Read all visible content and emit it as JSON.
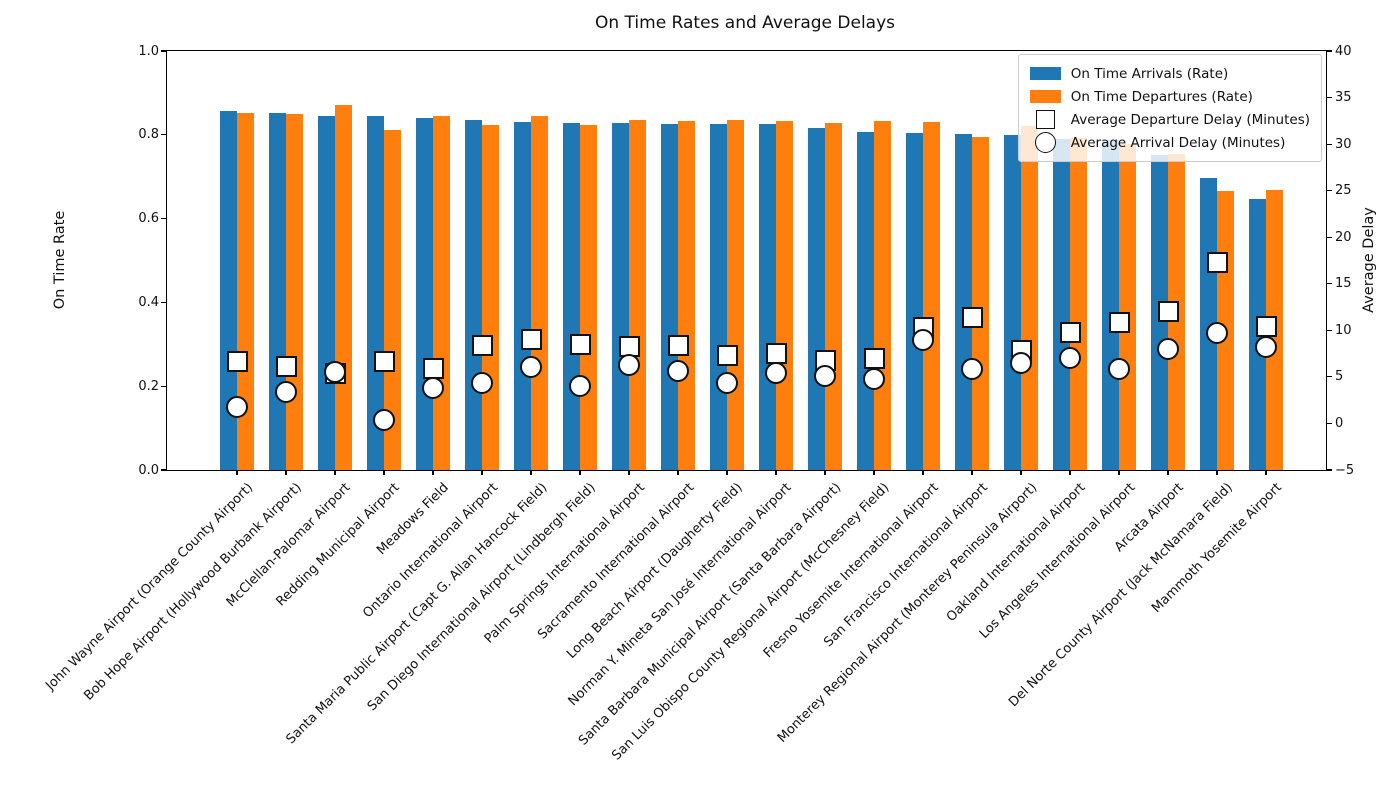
{
  "chart_data": {
    "type": "bar",
    "title": "On Time Rates and Average Delays",
    "ylabel_left": "On Time Rate",
    "ylabel_right": "Average Delay",
    "left_ylim": [
      0,
      1
    ],
    "right_ylim": [
      -5,
      40
    ],
    "grid": false,
    "legend_position": "upper right",
    "left_tick_labels": [
      "0.0",
      "0.2",
      "0.4",
      "0.6",
      "0.8",
      "1.0"
    ],
    "right_tick_labels": [
      "−5",
      "0",
      "5",
      "10",
      "15",
      "20",
      "25",
      "30",
      "35",
      "40"
    ],
    "categories": [
      "John Wayne Airport (Orange County Airport)",
      "Bob Hope Airport (Hollywood Burbank Airport)",
      "McClellan-Palomar Airport",
      "Redding Municipal Airport",
      "Meadows Field",
      "Ontario International Airport",
      "Santa Maria Public Airport (Capt G. Allan Hancock Field)",
      "San Diego International Airport (Lindbergh Field)",
      "Palm Springs International Airport",
      "Sacramento International Airport",
      "Long Beach Airport (Daugherty Field)",
      "Norman Y. Mineta San José International Airport",
      "Santa Barbara Municipal Airport (Santa Barbara Airport)",
      "San Luis Obispo County Regional Airport (McChesney Field)",
      "Fresno Yosemite International Airport",
      "San Francisco International Airport",
      "Monterey Regional Airport (Monterey Peninsula Airport)",
      "Oakland International Airport",
      "Los Angeles International Airport",
      "Arcata Airport",
      "Del Norte County Airport (Jack McNamara Field)",
      "Mammoth Yosemite Airport"
    ],
    "series": [
      {
        "name": "On Time Arrivals (Rate)",
        "axis": "left",
        "mark": "bar",
        "color": "#1f77b4",
        "values": [
          0.858,
          0.853,
          0.845,
          0.845,
          0.841,
          0.835,
          0.831,
          0.828,
          0.828,
          0.827,
          0.827,
          0.826,
          0.817,
          0.807,
          0.805,
          0.801,
          0.8,
          0.791,
          0.788,
          0.752,
          0.697,
          0.646
        ]
      },
      {
        "name": "On Time Departures (Rate)",
        "axis": "left",
        "mark": "bar",
        "color": "#ff7f0e",
        "values": [
          0.851,
          0.849,
          0.871,
          0.812,
          0.846,
          0.824,
          0.845,
          0.823,
          0.835,
          0.833,
          0.836,
          0.833,
          0.829,
          0.832,
          0.831,
          0.795,
          0.821,
          0.792,
          0.779,
          0.755,
          0.666,
          0.668
        ]
      },
      {
        "name": "Average Departure Delay (Minutes)",
        "axis": "right",
        "mark": "square",
        "color": "#ffffff",
        "edge_color": "#000000",
        "values": [
          6.6,
          6.1,
          5.4,
          6.6,
          5.9,
          8.4,
          9.0,
          8.5,
          8.3,
          8.4,
          7.3,
          7.5,
          6.8,
          7.0,
          10.3,
          11.4,
          7.8,
          9.8,
          10.8,
          12.0,
          17.3,
          10.4
        ]
      },
      {
        "name": "Average Arrival Delay (Minutes)",
        "axis": "right",
        "mark": "circle",
        "color": "#ffffff",
        "edge_color": "#000000",
        "values": [
          1.8,
          3.4,
          5.5,
          0.4,
          3.8,
          4.3,
          6.1,
          4.0,
          6.3,
          5.6,
          4.3,
          5.4,
          5.1,
          4.8,
          9.0,
          5.8,
          6.5,
          7.0,
          5.9,
          8.0,
          9.7,
          8.2
        ]
      }
    ]
  }
}
